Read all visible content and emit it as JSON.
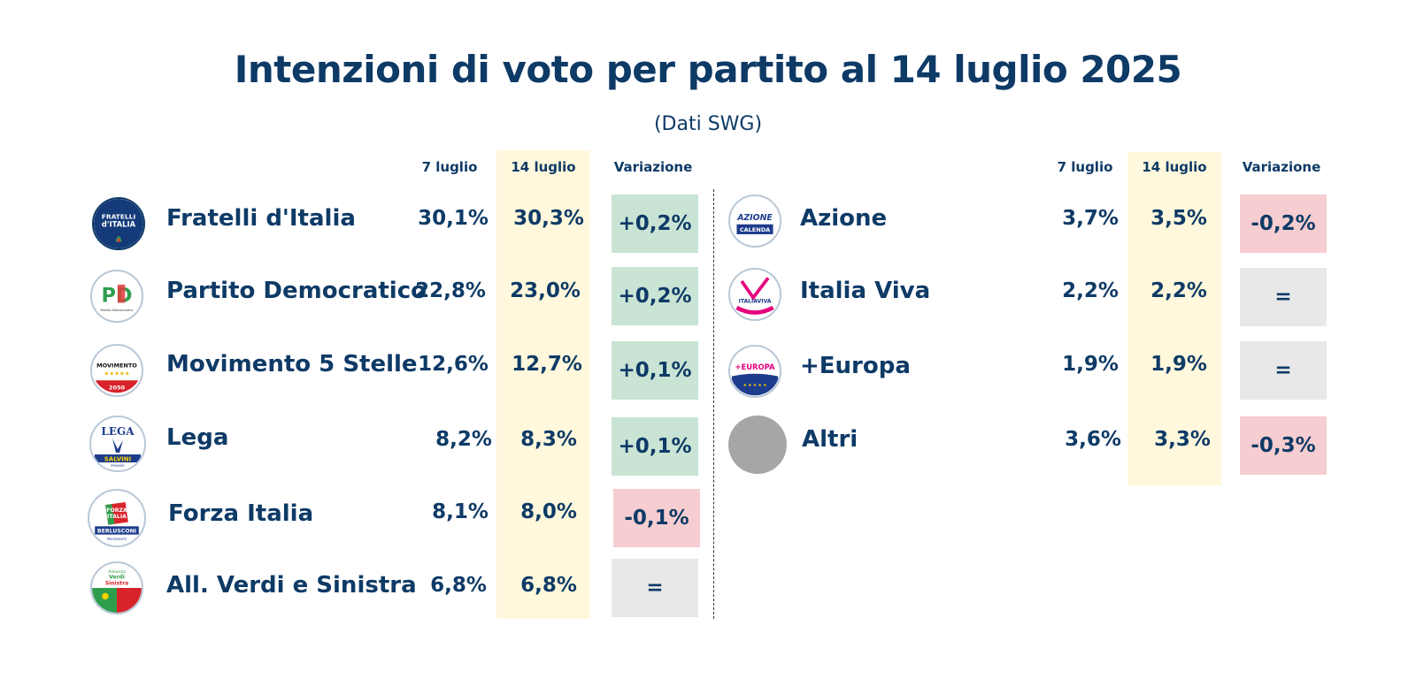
{
  "chart_data": {
    "type": "table",
    "title": "Intenzioni di voto per partito al 14 luglio 2025",
    "subtitle": "(Dati SWG)",
    "columns": [
      "7 luglio",
      "14 luglio",
      "Variazione"
    ],
    "groups": [
      {
        "rows": [
          {
            "party": "Fratelli d'Italia",
            "logo": "fdi-logo",
            "prev": "30,1%",
            "curr": "30,3%",
            "var": "+0,2%",
            "trend": "up",
            "prev_value": 30.1,
            "curr_value": 30.3
          },
          {
            "party": "Partito Democratico",
            "logo": "pd-logo",
            "prev": "22,8%",
            "curr": "23,0%",
            "var": "+0,2%",
            "trend": "up",
            "prev_value": 22.8,
            "curr_value": 23.0
          },
          {
            "party": "Movimento 5 Stelle",
            "logo": "m5s-logo",
            "prev": "12,6%",
            "curr": "12,7%",
            "var": "+0,1%",
            "trend": "up",
            "prev_value": 12.6,
            "curr_value": 12.7
          },
          {
            "party": "Lega",
            "logo": "lega-logo",
            "prev": "8,2%",
            "curr": "8,3%",
            "var": "+0,1%",
            "trend": "up",
            "prev_value": 8.2,
            "curr_value": 8.3
          },
          {
            "party": "Forza Italia",
            "logo": "fi-logo",
            "prev": "8,1%",
            "curr": "8,0%",
            "var": "-0,1%",
            "trend": "down",
            "prev_value": 8.1,
            "curr_value": 8.0
          },
          {
            "party": "All. Verdi e Sinistra",
            "logo": "avs-logo",
            "prev": "6,8%",
            "curr": "6,8%",
            "var": "=",
            "trend": "same",
            "prev_value": 6.8,
            "curr_value": 6.8
          }
        ]
      },
      {
        "rows": [
          {
            "party": "Azione",
            "logo": "azione-logo",
            "prev": "3,7%",
            "curr": "3,5%",
            "var": "-0,2%",
            "trend": "down",
            "prev_value": 3.7,
            "curr_value": 3.5
          },
          {
            "party": "Italia Viva",
            "logo": "iv-logo",
            "prev": "2,2%",
            "curr": "2,2%",
            "var": "=",
            "trend": "same",
            "prev_value": 2.2,
            "curr_value": 2.2
          },
          {
            "party": "+Europa",
            "logo": "europa-logo",
            "prev": "1,9%",
            "curr": "1,9%",
            "var": "=",
            "trend": "same",
            "prev_value": 1.9,
            "curr_value": 1.9
          },
          {
            "party": "Altri",
            "logo": "grey-circle",
            "prev": "3,6%",
            "curr": "3,3%",
            "var": "-0,3%",
            "trend": "down",
            "prev_value": 3.6,
            "curr_value": 3.3
          }
        ]
      }
    ],
    "logo_text": {
      "fdi": [
        "FRATELLI",
        "d'ITALIA"
      ],
      "pd": [
        "PD",
        "Partito Democratico"
      ],
      "m5s": [
        "MOVIMENTO",
        "2050"
      ],
      "lega": [
        "LEGA",
        "SALVINI",
        "PREMIER"
      ],
      "fi": [
        "FORZA",
        "ITALIA",
        "BERLUSCONI",
        "PRESIDENTE"
      ],
      "avs": [
        "Alleanza",
        "Verdi",
        "Sinistra"
      ],
      "azione": [
        "AZIONE",
        "CALENDA"
      ],
      "iv": [
        "ITALIAVIVA"
      ],
      "europa": [
        "+EUROPA"
      ]
    },
    "colors": {
      "text": "#0e3a66",
      "highlight_column": "#fff8dc",
      "up": "#c9e4d4",
      "down": "#f6cdd0",
      "same": "#e8e8e8",
      "altri": "#a6a6a6"
    }
  }
}
